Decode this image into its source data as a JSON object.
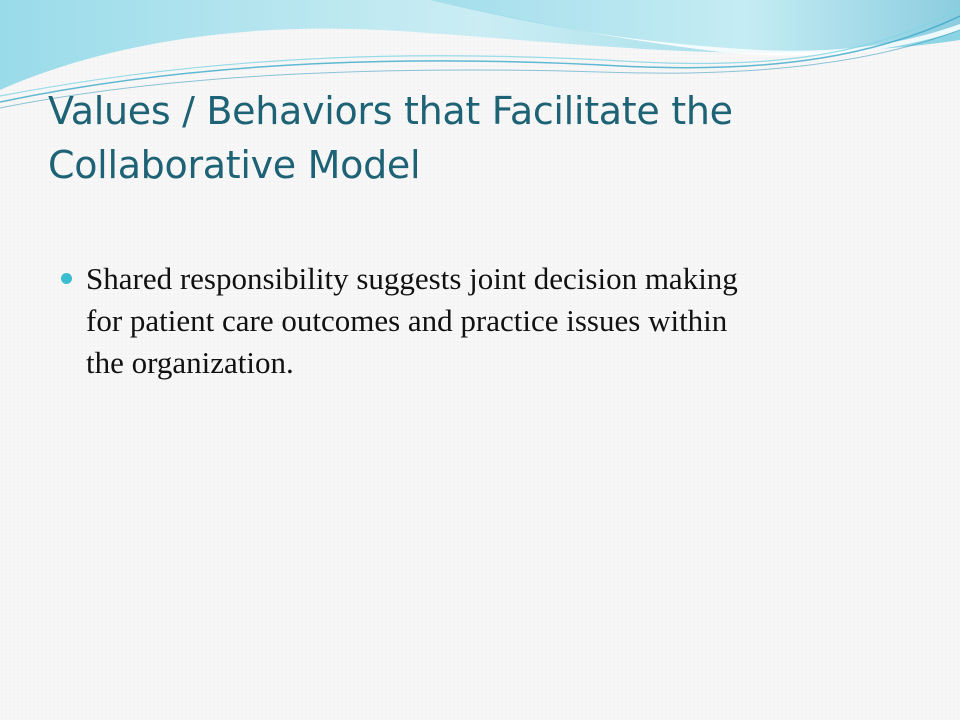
{
  "slide": {
    "title_lines": [
      "Values / Behaviors that Facilitate the",
      "Collaborative Model"
    ],
    "bullets": [
      {
        "lines": [
          "Shared responsibility suggests joint decision making",
          "for patient care outcomes and practice issues within",
          "the organization."
        ]
      }
    ]
  },
  "colors": {
    "title": "#1e6275",
    "bullet": "#3bbccf",
    "body_text": "#111111",
    "wave_light": "#bfe8f0",
    "wave_mid": "#7fd3e3",
    "wave_dark": "#3aa9c9"
  },
  "icons": {
    "bullet": "filled-circle-bullet"
  }
}
